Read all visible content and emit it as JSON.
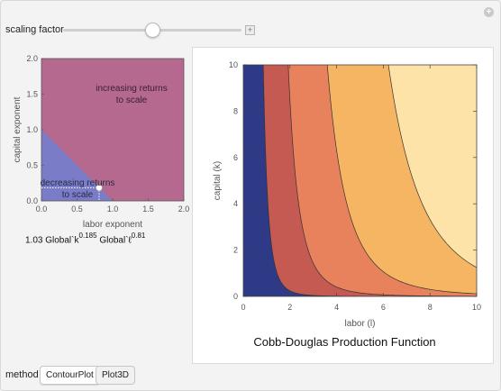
{
  "controls": {
    "scaling_label": "scaling factor",
    "scaling_value_fraction": 0.5
  },
  "left_plot": {
    "xlabel": "labor exponent",
    "ylabel": "capital exponent",
    "x_ticks": [
      "0.0",
      "0.5",
      "1.0",
      "1.5",
      "2.0"
    ],
    "y_ticks": [
      "0.0",
      "0.5",
      "1.0",
      "1.5",
      "2.0"
    ],
    "xlim": [
      0,
      2
    ],
    "ylim": [
      0,
      2
    ],
    "region_increasing_line1": "increasing returns",
    "region_increasing_line2": "to scale",
    "region_decreasing_line1": "decreasing returns",
    "region_decreasing_line2": "to scale",
    "point": {
      "labor_exponent": 0.81,
      "capital_exponent": 0.185
    },
    "colors": {
      "increasing": "#b5698e",
      "decreasing": "#7a7cc7"
    }
  },
  "formula": {
    "coef": "1.03",
    "term1": "Global`k",
    "exp1": "0.185",
    "term2": "Global`ℓ",
    "exp2": "0.81"
  },
  "chart_data": {
    "type": "contour",
    "title": "Cobb-Douglas Production Function",
    "xlabel": "labor (l)",
    "ylabel": "capital (k)",
    "xlim": [
      0,
      10
    ],
    "ylim": [
      0,
      10
    ],
    "x_ticks": [
      0,
      2,
      4,
      6,
      8,
      10
    ],
    "y_ticks": [
      0,
      2,
      4,
      6,
      8,
      10
    ],
    "function": {
      "A": 1.03,
      "alpha_labor": 0.81,
      "beta_capital": 0.185
    },
    "contour_levels": [
      1.39,
      2.68,
      4.45,
      6.93
    ],
    "fill_colors": [
      "#2e3a85",
      "#c45a52",
      "#e8825c",
      "#f5b562",
      "#fde3a7"
    ]
  },
  "method": {
    "label": "method",
    "options": [
      "ContourPlot",
      "Plot3D"
    ],
    "selected": "ContourPlot"
  }
}
